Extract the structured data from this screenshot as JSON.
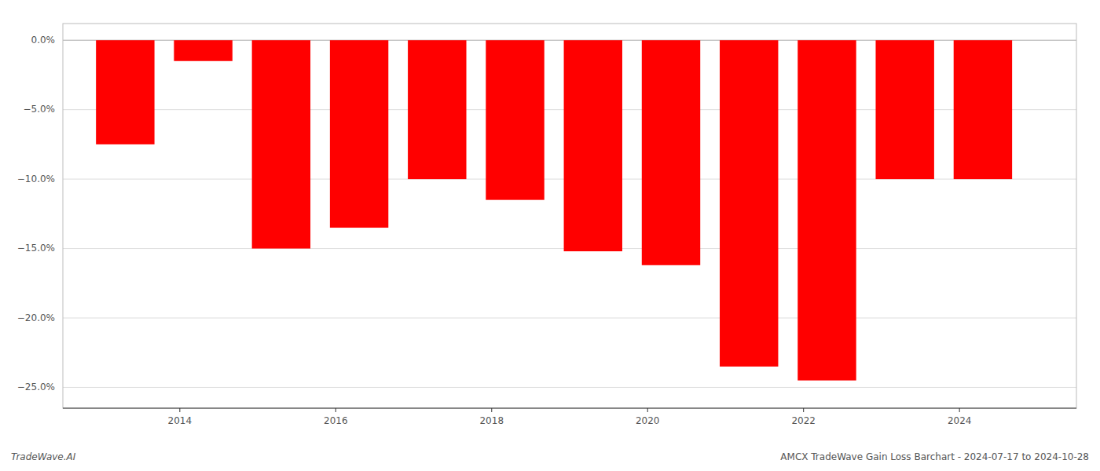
{
  "chart_data": {
    "type": "bar",
    "x": [
      2013.3,
      2014.3,
      2015.3,
      2016.3,
      2017.3,
      2018.3,
      2019.3,
      2020.3,
      2021.3,
      2022.3,
      2023.3,
      2024.3
    ],
    "values": [
      -7.5,
      -1.5,
      -15.0,
      -13.5,
      -10.0,
      -11.5,
      -15.2,
      -16.2,
      -23.5,
      -24.5,
      -10.0,
      -10.0
    ],
    "color": "#ff0000",
    "xlim": [
      2012.5,
      2025.5
    ],
    "xticks": [
      2014,
      2016,
      2018,
      2020,
      2022,
      2024
    ],
    "ylim": [
      -26.5,
      1.2
    ],
    "yticks": [
      {
        "value": 0,
        "label": "0.0%"
      },
      {
        "value": -5,
        "label": "−5.0%"
      },
      {
        "value": -10,
        "label": "−10.0%"
      },
      {
        "value": -15,
        "label": "−15.0%"
      },
      {
        "value": -20,
        "label": "−20.0%"
      },
      {
        "value": -25,
        "label": "−25.0%"
      }
    ],
    "grid": true,
    "annotations": [
      "TradeWave.AI",
      "AMCX TradeWave Gain Loss Barchart - 2024-07-17 to 2024-10-28"
    ]
  }
}
